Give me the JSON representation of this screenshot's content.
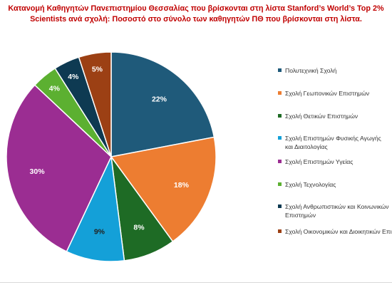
{
  "chart_data": {
    "type": "pie",
    "title_lines": [
      "Κατανομή Καθηγητών Πανεπιστημίου Θεσσαλίας που βρίσκονται στη λίστα Stanford’s World’s Top 2%",
      "Scientists ανά σχολή: Ποσοστό στο σύνολο των καθηγητών  ΠΘ που βρίσκονται στη λίστα."
    ],
    "legend_position": "right",
    "categories": [
      "Πολυτεχνική Σχολή",
      "Σχολή Γεωπονικών Επιστημών",
      "Σχολή Θετικών Επιστημών",
      "Σχολή Επιστημών Φυσικής Αγωγής και Διαιτολογίας",
      "Σχολή Επιστημών Υγείας",
      "Σχολή Τεχνολογίας",
      "Σχολή Ανθρωπιστικών και Κοινωνικών Επιστημών",
      "Σχολή Οικονομικών και Διοικητικών Επιστημών"
    ],
    "legend_labels": [
      [
        "Πολυτεχνική Σχολή"
      ],
      [
        "Σχολή Γεωπονικών Επιστημών"
      ],
      [
        "Σχολή Θετικών Επιστημών"
      ],
      [
        "Σχολή Επιστημών Φυσικής Αγωγής",
        "και Διαιτολογίας"
      ],
      [
        "Σχολή Επιστημών Υγείας"
      ],
      [
        "Σχολή Τεχνολογίας"
      ],
      [
        "Σχολή Ανθρωπιστικών και Κοινωνικών",
        "Επιστημών"
      ],
      [
        "Σχολή Οικονομικών και Διοικητικών Επιστημών"
      ]
    ],
    "values": [
      22,
      18,
      8,
      9,
      30,
      4,
      4,
      5
    ],
    "data_labels": [
      "22%",
      "18%",
      "8%",
      "9%",
      "30%",
      "4%",
      "4%",
      "5%"
    ],
    "colors": [
      "#1f5a7a",
      "#ed7d31",
      "#1e6b25",
      "#14a0d8",
      "#9b2d92",
      "#5cb031",
      "#0e3a52",
      "#9c4014"
    ]
  }
}
